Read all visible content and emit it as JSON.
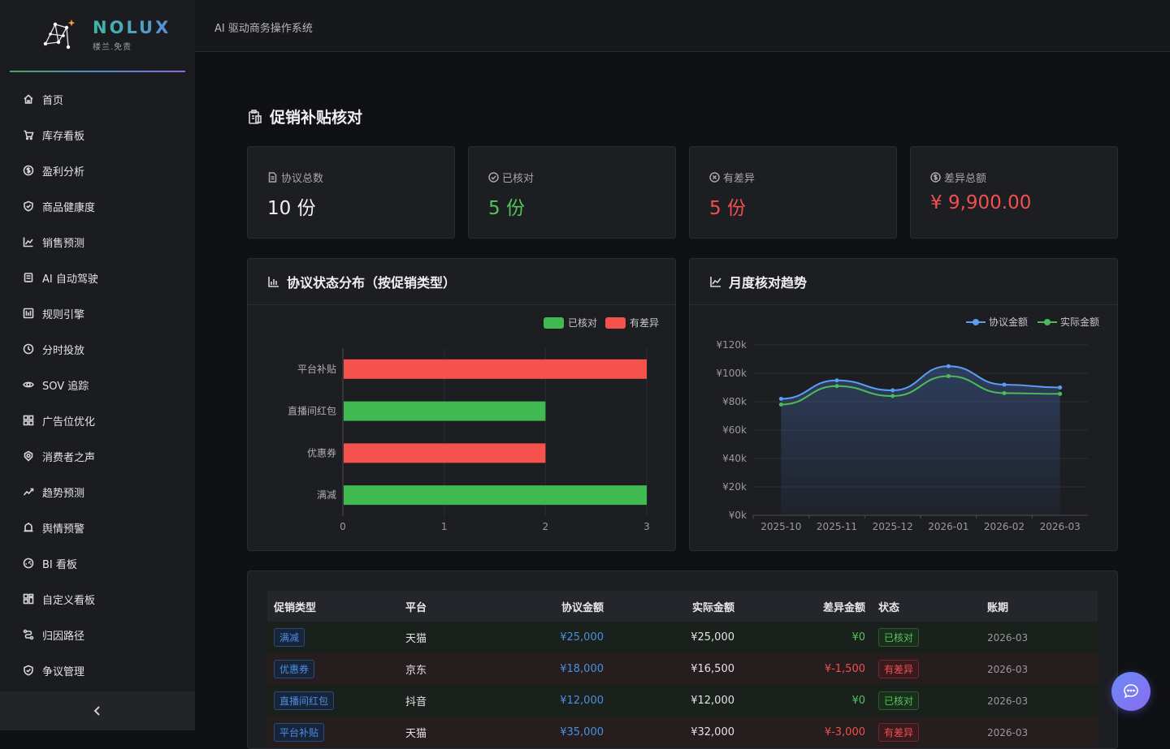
{
  "brand": {
    "name": "NOLUX",
    "subtitle": "楼兰.免责"
  },
  "header": {
    "title": "AI 驱动商务操作系统"
  },
  "sidebar": {
    "items": [
      {
        "label": "首页",
        "icon": "home-icon"
      },
      {
        "label": "库存看板",
        "icon": "cart-icon"
      },
      {
        "label": "盈利分析",
        "icon": "dollar-icon"
      },
      {
        "label": "商品健康度",
        "icon": "shield-icon"
      },
      {
        "label": "销售预测",
        "icon": "line-chart-icon"
      },
      {
        "label": "AI 自动驾驶",
        "icon": "robot-icon"
      },
      {
        "label": "规则引擎",
        "icon": "rules-icon"
      },
      {
        "label": "分时投放",
        "icon": "clock-icon"
      },
      {
        "label": "SOV 追踪",
        "icon": "eye-icon"
      },
      {
        "label": "广告位优化",
        "icon": "grid-icon"
      },
      {
        "label": "消费者之声",
        "icon": "voice-icon"
      },
      {
        "label": "趋势预测",
        "icon": "trend-icon"
      },
      {
        "label": "舆情预警",
        "icon": "alarm-icon"
      },
      {
        "label": "BI 看板",
        "icon": "dashboard-icon"
      },
      {
        "label": "自定义看板",
        "icon": "layout-icon"
      },
      {
        "label": "归因路径",
        "icon": "path-icon"
      },
      {
        "label": "争议管理",
        "icon": "shield-check-icon"
      }
    ],
    "collapse_icon": "chevron-left-icon"
  },
  "page": {
    "title": "促销补贴核对"
  },
  "cards": [
    {
      "label": "协议总数",
      "value": "10 份",
      "color": "#f0f0f0",
      "icon": "document-icon"
    },
    {
      "label": "已核对",
      "value": "5 份",
      "color": "#52c45a",
      "icon": "check-circle-icon"
    },
    {
      "label": "有差异",
      "value": "5 份",
      "color": "#f05050",
      "icon": "close-circle-icon"
    },
    {
      "label": "差异总额",
      "value": "¥ 9,900.00",
      "color": "#f05050",
      "icon": "dollar-circle-icon"
    }
  ],
  "bar_panel": {
    "title": "协议状态分布（按促销类型）"
  },
  "line_panel": {
    "title": "月度核对趋势"
  },
  "chart_data": [
    {
      "type": "bar",
      "orientation": "horizontal",
      "categories": [
        "平台补贴",
        "直播间红包",
        "优惠券",
        "满减"
      ],
      "series": [
        {
          "name": "已核对",
          "values": [
            0,
            2,
            0,
            3
          ],
          "color": "#3fb950"
        },
        {
          "name": "有差异",
          "values": [
            3,
            0,
            2,
            0
          ],
          "color": "#f5524d"
        }
      ],
      "xlim": [
        0,
        3
      ],
      "xticks": [
        "0",
        "1",
        "2",
        "3"
      ],
      "legend": "top-right",
      "grid": true
    },
    {
      "type": "line",
      "x": [
        "2025-10",
        "2025-11",
        "2025-12",
        "2026-01",
        "2026-02",
        "2026-03"
      ],
      "series": [
        {
          "name": "协议金额",
          "values": [
            82000,
            95000,
            88000,
            105000,
            92000,
            90000
          ],
          "color": "#5b9cf5"
        },
        {
          "name": "实际金额",
          "values": [
            78000,
            91000,
            84000,
            98000,
            86000,
            85500
          ],
          "color": "#4cbb58"
        }
      ],
      "ylim": [
        0,
        120000
      ],
      "yticks": [
        "¥0k",
        "¥20k",
        "¥40k",
        "¥60k",
        "¥80k",
        "¥100k",
        "¥120k"
      ],
      "legend": "top-right",
      "grid": true
    }
  ],
  "table": {
    "headers": [
      "促销类型",
      "平台",
      "协议金额",
      "实际金额",
      "差异金额",
      "状态",
      "账期"
    ],
    "rows": [
      {
        "type": "满减",
        "platform": "天猫",
        "agreed": "¥25,000",
        "actual": "¥25,000",
        "diff": "¥0",
        "status": "已核对",
        "ok": true,
        "period": "2026-03"
      },
      {
        "type": "优惠券",
        "platform": "京东",
        "agreed": "¥18,000",
        "actual": "¥16,500",
        "diff": "¥-1,500",
        "status": "有差异",
        "ok": false,
        "period": "2026-03"
      },
      {
        "type": "直播间红包",
        "platform": "抖音",
        "agreed": "¥12,000",
        "actual": "¥12,000",
        "diff": "¥0",
        "status": "已核对",
        "ok": true,
        "period": "2026-03"
      },
      {
        "type": "平台补贴",
        "platform": "天猫",
        "agreed": "¥35,000",
        "actual": "¥32,000",
        "diff": "¥-3,000",
        "status": "有差异",
        "ok": false,
        "period": "2026-03"
      }
    ]
  },
  "chat": {
    "icon": "chat-bubble-icon"
  }
}
